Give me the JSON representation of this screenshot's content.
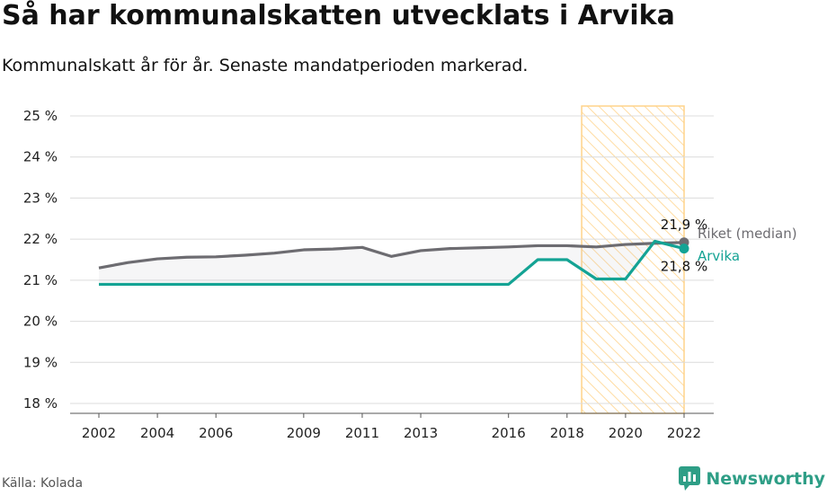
{
  "title": "Så har kommunalskatten utvecklats i Arvika",
  "subtitle": "Kommunalskatt år för år. Senaste mandatperioden markerad.",
  "source": "Källa: Kolada",
  "brand": "Newsworthy",
  "colors": {
    "riket": "#6d6c71",
    "arvika": "#14a394",
    "highlight": "#ffd38a",
    "grid": "#dcdcdc"
  },
  "chart_data": {
    "type": "line",
    "x": [
      2002,
      2003,
      2004,
      2005,
      2006,
      2007,
      2008,
      2009,
      2010,
      2011,
      2012,
      2013,
      2014,
      2015,
      2016,
      2017,
      2018,
      2019,
      2020,
      2021,
      2022
    ],
    "series": [
      {
        "name": "Riket (median)",
        "color": "#6d6c71",
        "values": [
          21.3,
          21.43,
          21.52,
          21.56,
          21.57,
          21.61,
          21.66,
          21.74,
          21.76,
          21.8,
          21.58,
          21.72,
          21.77,
          21.79,
          21.81,
          21.84,
          21.84,
          21.81,
          21.87,
          21.9,
          21.92
        ]
      },
      {
        "name": "Arvika",
        "color": "#14a394",
        "values": [
          20.9,
          20.9,
          20.9,
          20.9,
          20.9,
          20.9,
          20.9,
          20.9,
          20.9,
          20.9,
          20.9,
          20.9,
          20.9,
          20.9,
          20.9,
          21.5,
          21.5,
          21.03,
          21.03,
          21.95,
          21.77
        ]
      }
    ],
    "xticks": [
      2002,
      2004,
      2006,
      2009,
      2011,
      2013,
      2016,
      2018,
      2020,
      2022
    ],
    "yticks": [
      18,
      19,
      20,
      21,
      22,
      23,
      24,
      25
    ],
    "ytick_labels": [
      "18 %",
      "19 %",
      "20 %",
      "21 %",
      "22 %",
      "23 %",
      "24 %",
      "25 %"
    ],
    "ylim": [
      18,
      25
    ],
    "xlim": [
      2002,
      2022
    ],
    "highlight_period": [
      2018.5,
      2022
    ],
    "end_labels": {
      "riket": "21,9 %",
      "arvika": "21,8 %"
    },
    "fill_between": true,
    "grid": "horizontal",
    "xlabel": "",
    "ylabel": ""
  }
}
